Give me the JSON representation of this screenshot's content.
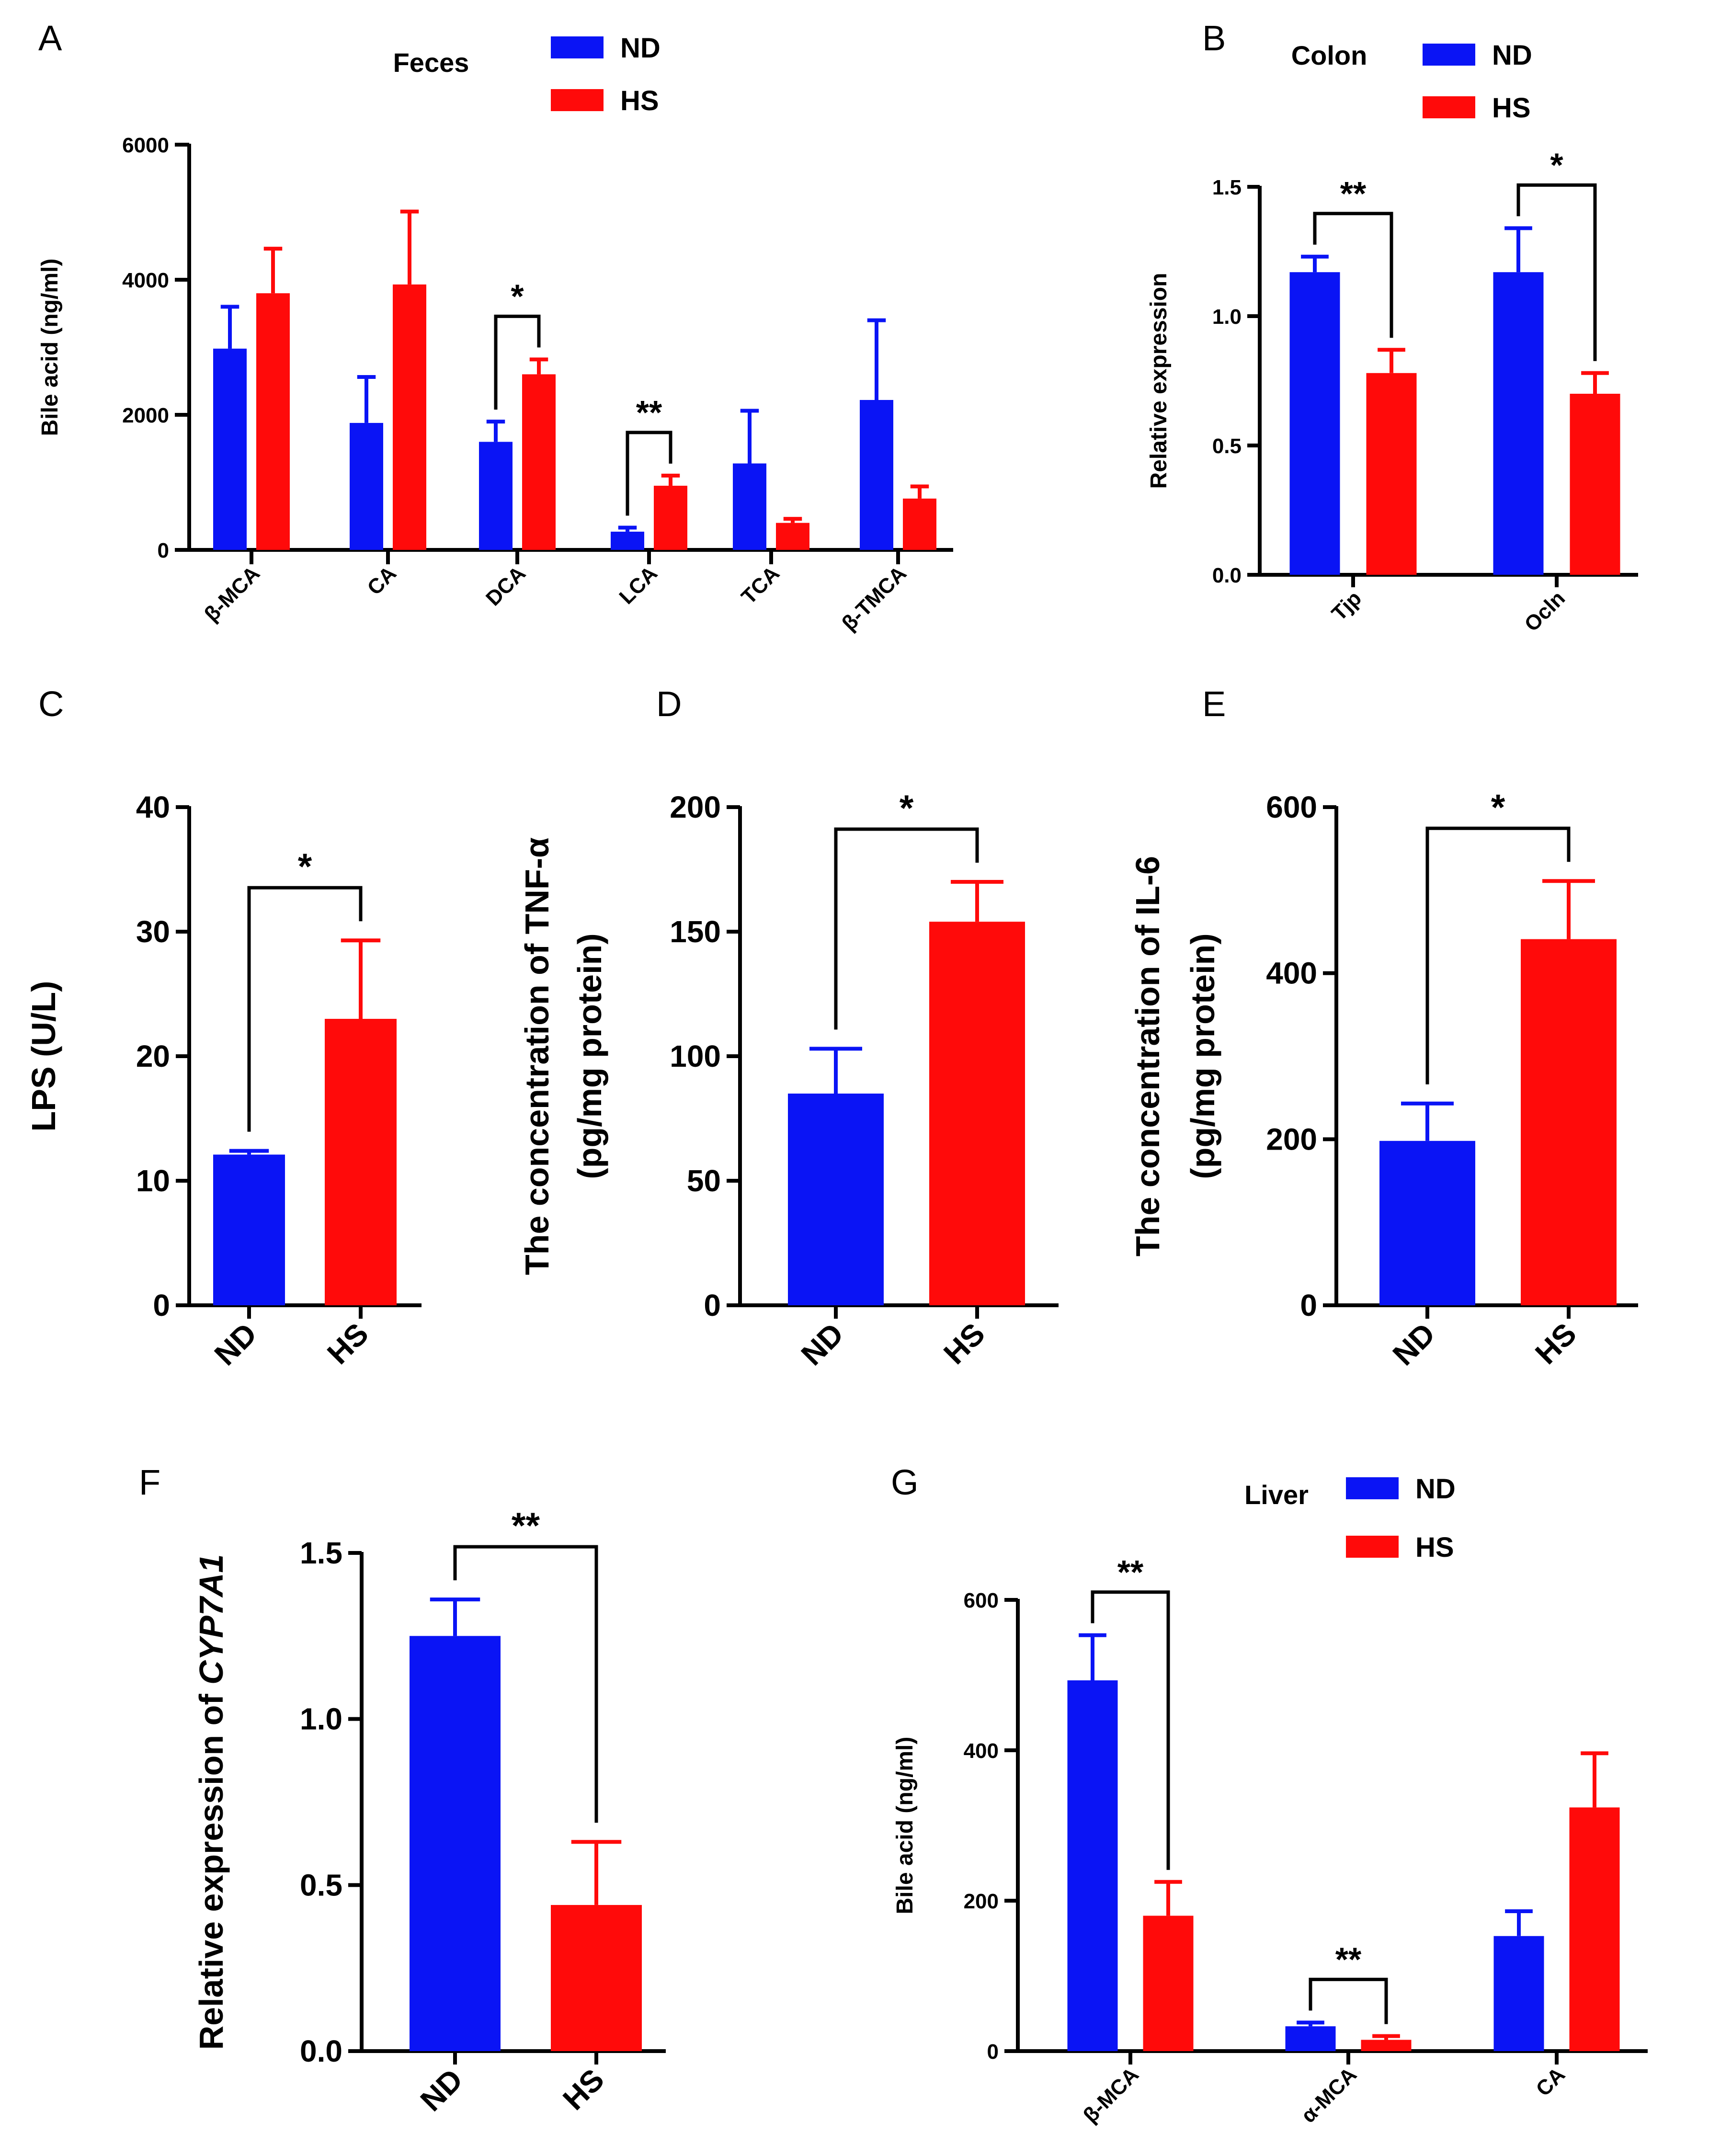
{
  "colors": {
    "ND": "#0a14f5",
    "HS": "#ff0a0a",
    "axis": "#000000"
  },
  "chart_data": [
    {
      "id": "A",
      "panel_label": "A",
      "type": "bar",
      "title": "Feces",
      "ylabel": "Bile acid (ng/ml)",
      "xlabel": "",
      "ylim": [
        0,
        6000
      ],
      "yticks": [
        0,
        2000,
        4000,
        6000
      ],
      "categories": [
        "β-MCA",
        "CA",
        "DCA",
        "LCA",
        "TCA",
        "β-TMCA"
      ],
      "series": [
        {
          "name": "ND",
          "values": [
            2980,
            1880,
            1600,
            270,
            1280,
            2220
          ],
          "errors": [
            620,
            680,
            300,
            60,
            780,
            1180
          ]
        },
        {
          "name": "HS",
          "values": [
            3800,
            3930,
            2600,
            950,
            400,
            760
          ],
          "errors": [
            660,
            1080,
            220,
            150,
            60,
            180
          ]
        }
      ],
      "legend": [
        "ND",
        "HS"
      ],
      "significance": [
        {
          "category": 2,
          "label": "*"
        },
        {
          "category": 3,
          "label": "**"
        }
      ]
    },
    {
      "id": "B",
      "panel_label": "B",
      "type": "bar",
      "title": "Colon",
      "ylabel": "Relative expression",
      "xlabel": "",
      "ylim": [
        0,
        1.5
      ],
      "yticks": [
        "0.0",
        "0.5",
        "1.0",
        "1.5"
      ],
      "categories": [
        "Tjp",
        "Ocln"
      ],
      "series": [
        {
          "name": "ND",
          "values": [
            1.17,
            1.17
          ],
          "errors": [
            0.06,
            0.17
          ]
        },
        {
          "name": "HS",
          "values": [
            0.78,
            0.7
          ],
          "errors": [
            0.09,
            0.08
          ]
        }
      ],
      "legend": [
        "ND",
        "HS"
      ],
      "significance": [
        {
          "category": 0,
          "label": "**"
        },
        {
          "category": 1,
          "label": "*"
        }
      ]
    },
    {
      "id": "C",
      "panel_label": "C",
      "type": "bar",
      "title": "",
      "ylabel": "LPS (U/L)",
      "xlabel": "",
      "ylim": [
        0,
        40
      ],
      "yticks": [
        0,
        10,
        20,
        30,
        40
      ],
      "categories": [
        "ND",
        "HS"
      ],
      "values": [
        12.1,
        23.0
      ],
      "errors": [
        0.3,
        6.3
      ],
      "significance": [
        {
          "label": "*"
        }
      ]
    },
    {
      "id": "D",
      "panel_label": "D",
      "type": "bar",
      "title": "",
      "ylabel": [
        "The concentration of TNF-α",
        "(pg/mg protein)"
      ],
      "xlabel": "",
      "ylim": [
        0,
        200
      ],
      "yticks": [
        0,
        50,
        100,
        150,
        200
      ],
      "categories": [
        "ND",
        "HS"
      ],
      "values": [
        85,
        154
      ],
      "errors": [
        18,
        16
      ],
      "significance": [
        {
          "label": "*"
        }
      ]
    },
    {
      "id": "E",
      "panel_label": "E",
      "type": "bar",
      "title": "",
      "ylabel": [
        "The concentration of IL-6",
        "(pg/mg protein)"
      ],
      "xlabel": "",
      "ylim": [
        0,
        600
      ],
      "yticks": [
        0,
        200,
        400,
        600
      ],
      "categories": [
        "ND",
        "HS"
      ],
      "values": [
        198,
        441
      ],
      "errors": [
        45,
        70
      ],
      "significance": [
        {
          "label": "*"
        }
      ]
    },
    {
      "id": "F",
      "panel_label": "F",
      "type": "bar",
      "title": "",
      "ylabel": "Relative expression of ",
      "ylabel_italic": "CYP7A1",
      "xlabel": "",
      "ylim": [
        0,
        1.5
      ],
      "yticks": [
        "0.0",
        "0.5",
        "1.0",
        "1.5"
      ],
      "categories": [
        "ND",
        "HS"
      ],
      "values": [
        1.25,
        0.44
      ],
      "errors": [
        0.11,
        0.19
      ],
      "significance": [
        {
          "label": "**"
        }
      ]
    },
    {
      "id": "G",
      "panel_label": "G",
      "type": "bar",
      "title": "Liver",
      "ylabel": "Bile acid (ng/ml)",
      "xlabel": "",
      "ylim": [
        0,
        600
      ],
      "yticks": [
        0,
        200,
        400,
        600
      ],
      "categories": [
        "β-MCA",
        "α-MCA",
        "CA"
      ],
      "series": [
        {
          "name": "ND",
          "values": [
            493,
            33,
            153
          ],
          "errors": [
            60,
            5,
            33
          ]
        },
        {
          "name": "HS",
          "values": [
            180,
            15,
            324
          ],
          "errors": [
            45,
            5,
            72
          ]
        }
      ],
      "legend": [
        "ND",
        "HS"
      ],
      "significance": [
        {
          "category": 0,
          "label": "**"
        },
        {
          "category": 1,
          "label": "**"
        }
      ]
    }
  ]
}
